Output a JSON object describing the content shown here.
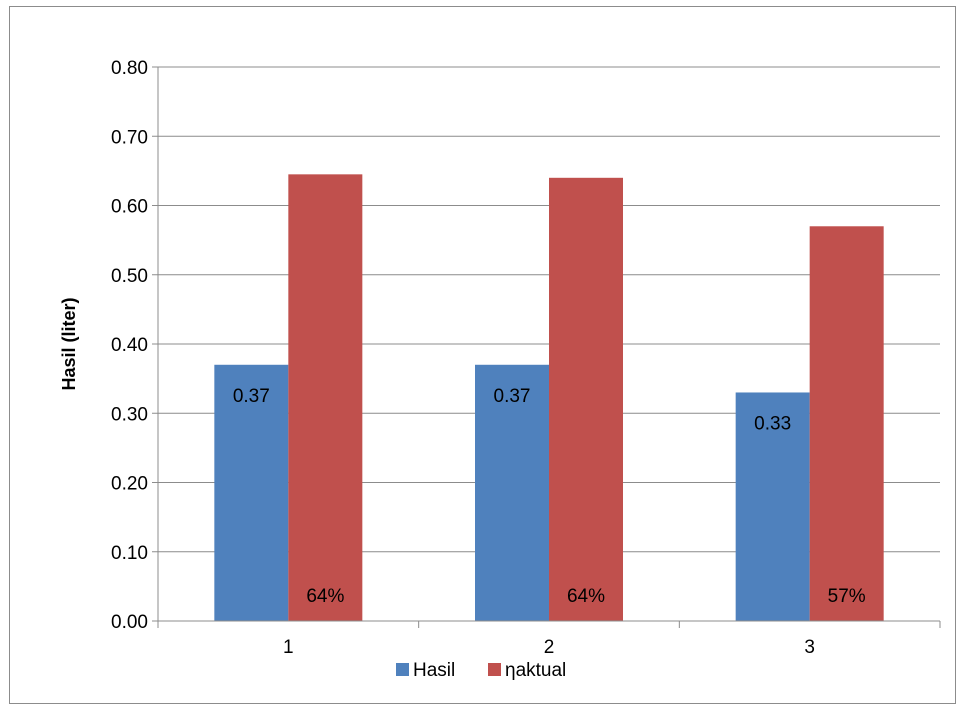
{
  "chart_data": {
    "type": "bar",
    "categories": [
      "1",
      "2",
      "3"
    ],
    "series": [
      {
        "name": "Hasil",
        "values": [
          0.37,
          0.37,
          0.33
        ],
        "labels": [
          "0.37",
          "0.37",
          "0.33"
        ],
        "color": "#4F81BD"
      },
      {
        "name": "ηaktual",
        "values": [
          0.645,
          0.64,
          0.57
        ],
        "labels": [
          "64%",
          "64%",
          "57%"
        ],
        "color": "#C0504D"
      }
    ],
    "ylabel": "Hasil (liter)",
    "xlabel": "",
    "ylim": [
      0,
      0.8
    ],
    "yticks": [
      "0.00",
      "0.10",
      "0.20",
      "0.30",
      "0.40",
      "0.50",
      "0.60",
      "0.70",
      "0.80"
    ],
    "grid": true,
    "legend_position": "bottom",
    "gridline_color": "#8C8C8C"
  }
}
